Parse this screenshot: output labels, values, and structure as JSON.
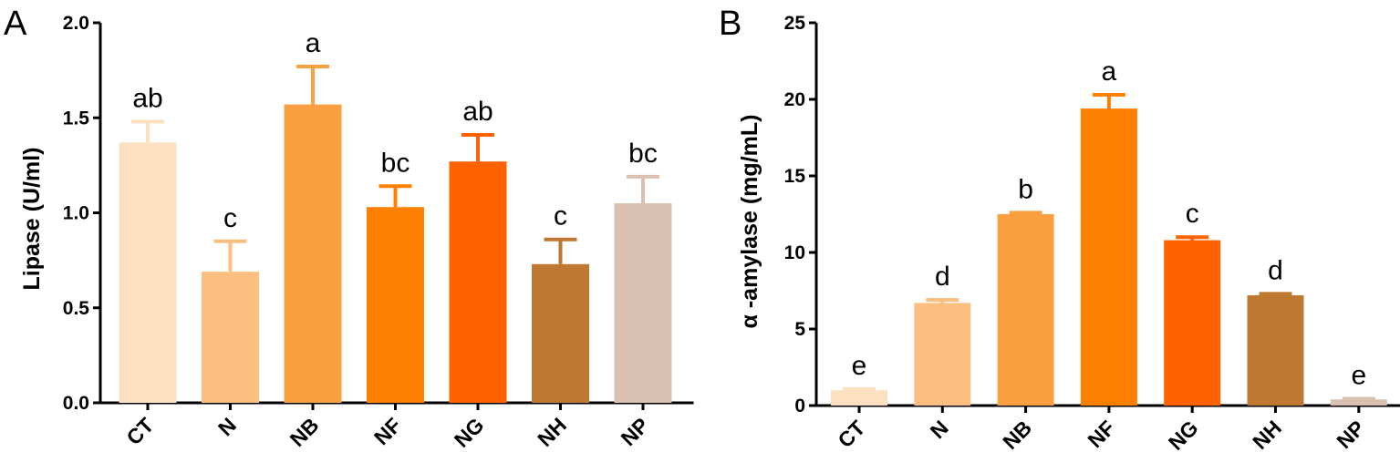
{
  "chart_data": [
    {
      "type": "bar",
      "panel": "A",
      "title": "",
      "xlabel": "",
      "ylabel": "Lipase (U/ml)",
      "ylim": [
        0,
        2.0
      ],
      "yticks": [
        "0.0",
        "0.5",
        "1.0",
        "1.5",
        "2.0"
      ],
      "categories": [
        "CT",
        "N",
        "NB",
        "NF",
        "NG",
        "NH",
        "NP"
      ],
      "values": [
        1.37,
        0.69,
        1.57,
        1.03,
        1.27,
        0.73,
        1.05
      ],
      "errors": [
        0.11,
        0.16,
        0.2,
        0.11,
        0.14,
        0.13,
        0.14
      ],
      "labels": [
        "ab",
        "c",
        "a",
        "bc",
        "ab",
        "c",
        "bc"
      ],
      "colors": [
        "#FDE0C0",
        "#FCBF80",
        "#FBA040",
        "#FF8000",
        "#FF6200",
        "#BF7832",
        "#D9C0B0"
      ]
    },
    {
      "type": "bar",
      "panel": "B",
      "title": "",
      "xlabel": "",
      "ylabel": "α -amylase (mg/mL)",
      "ylim": [
        0,
        25
      ],
      "yticks": [
        "0",
        "5",
        "10",
        "15",
        "20",
        "25"
      ],
      "categories": [
        "CT",
        "N",
        "NB",
        "NF",
        "NG",
        "NH",
        "NP"
      ],
      "values": [
        1.0,
        6.7,
        12.5,
        19.4,
        10.8,
        7.2,
        0.4
      ],
      "errors": [
        0.08,
        0.2,
        0.1,
        0.9,
        0.2,
        0.1,
        0.05
      ],
      "labels": [
        "e",
        "d",
        "b",
        "a",
        "c",
        "d",
        "e"
      ],
      "colors": [
        "#FDE0C0",
        "#FCBF80",
        "#FBA040",
        "#FF8000",
        "#FF6200",
        "#BF7832",
        "#D9C0B0"
      ]
    }
  ]
}
